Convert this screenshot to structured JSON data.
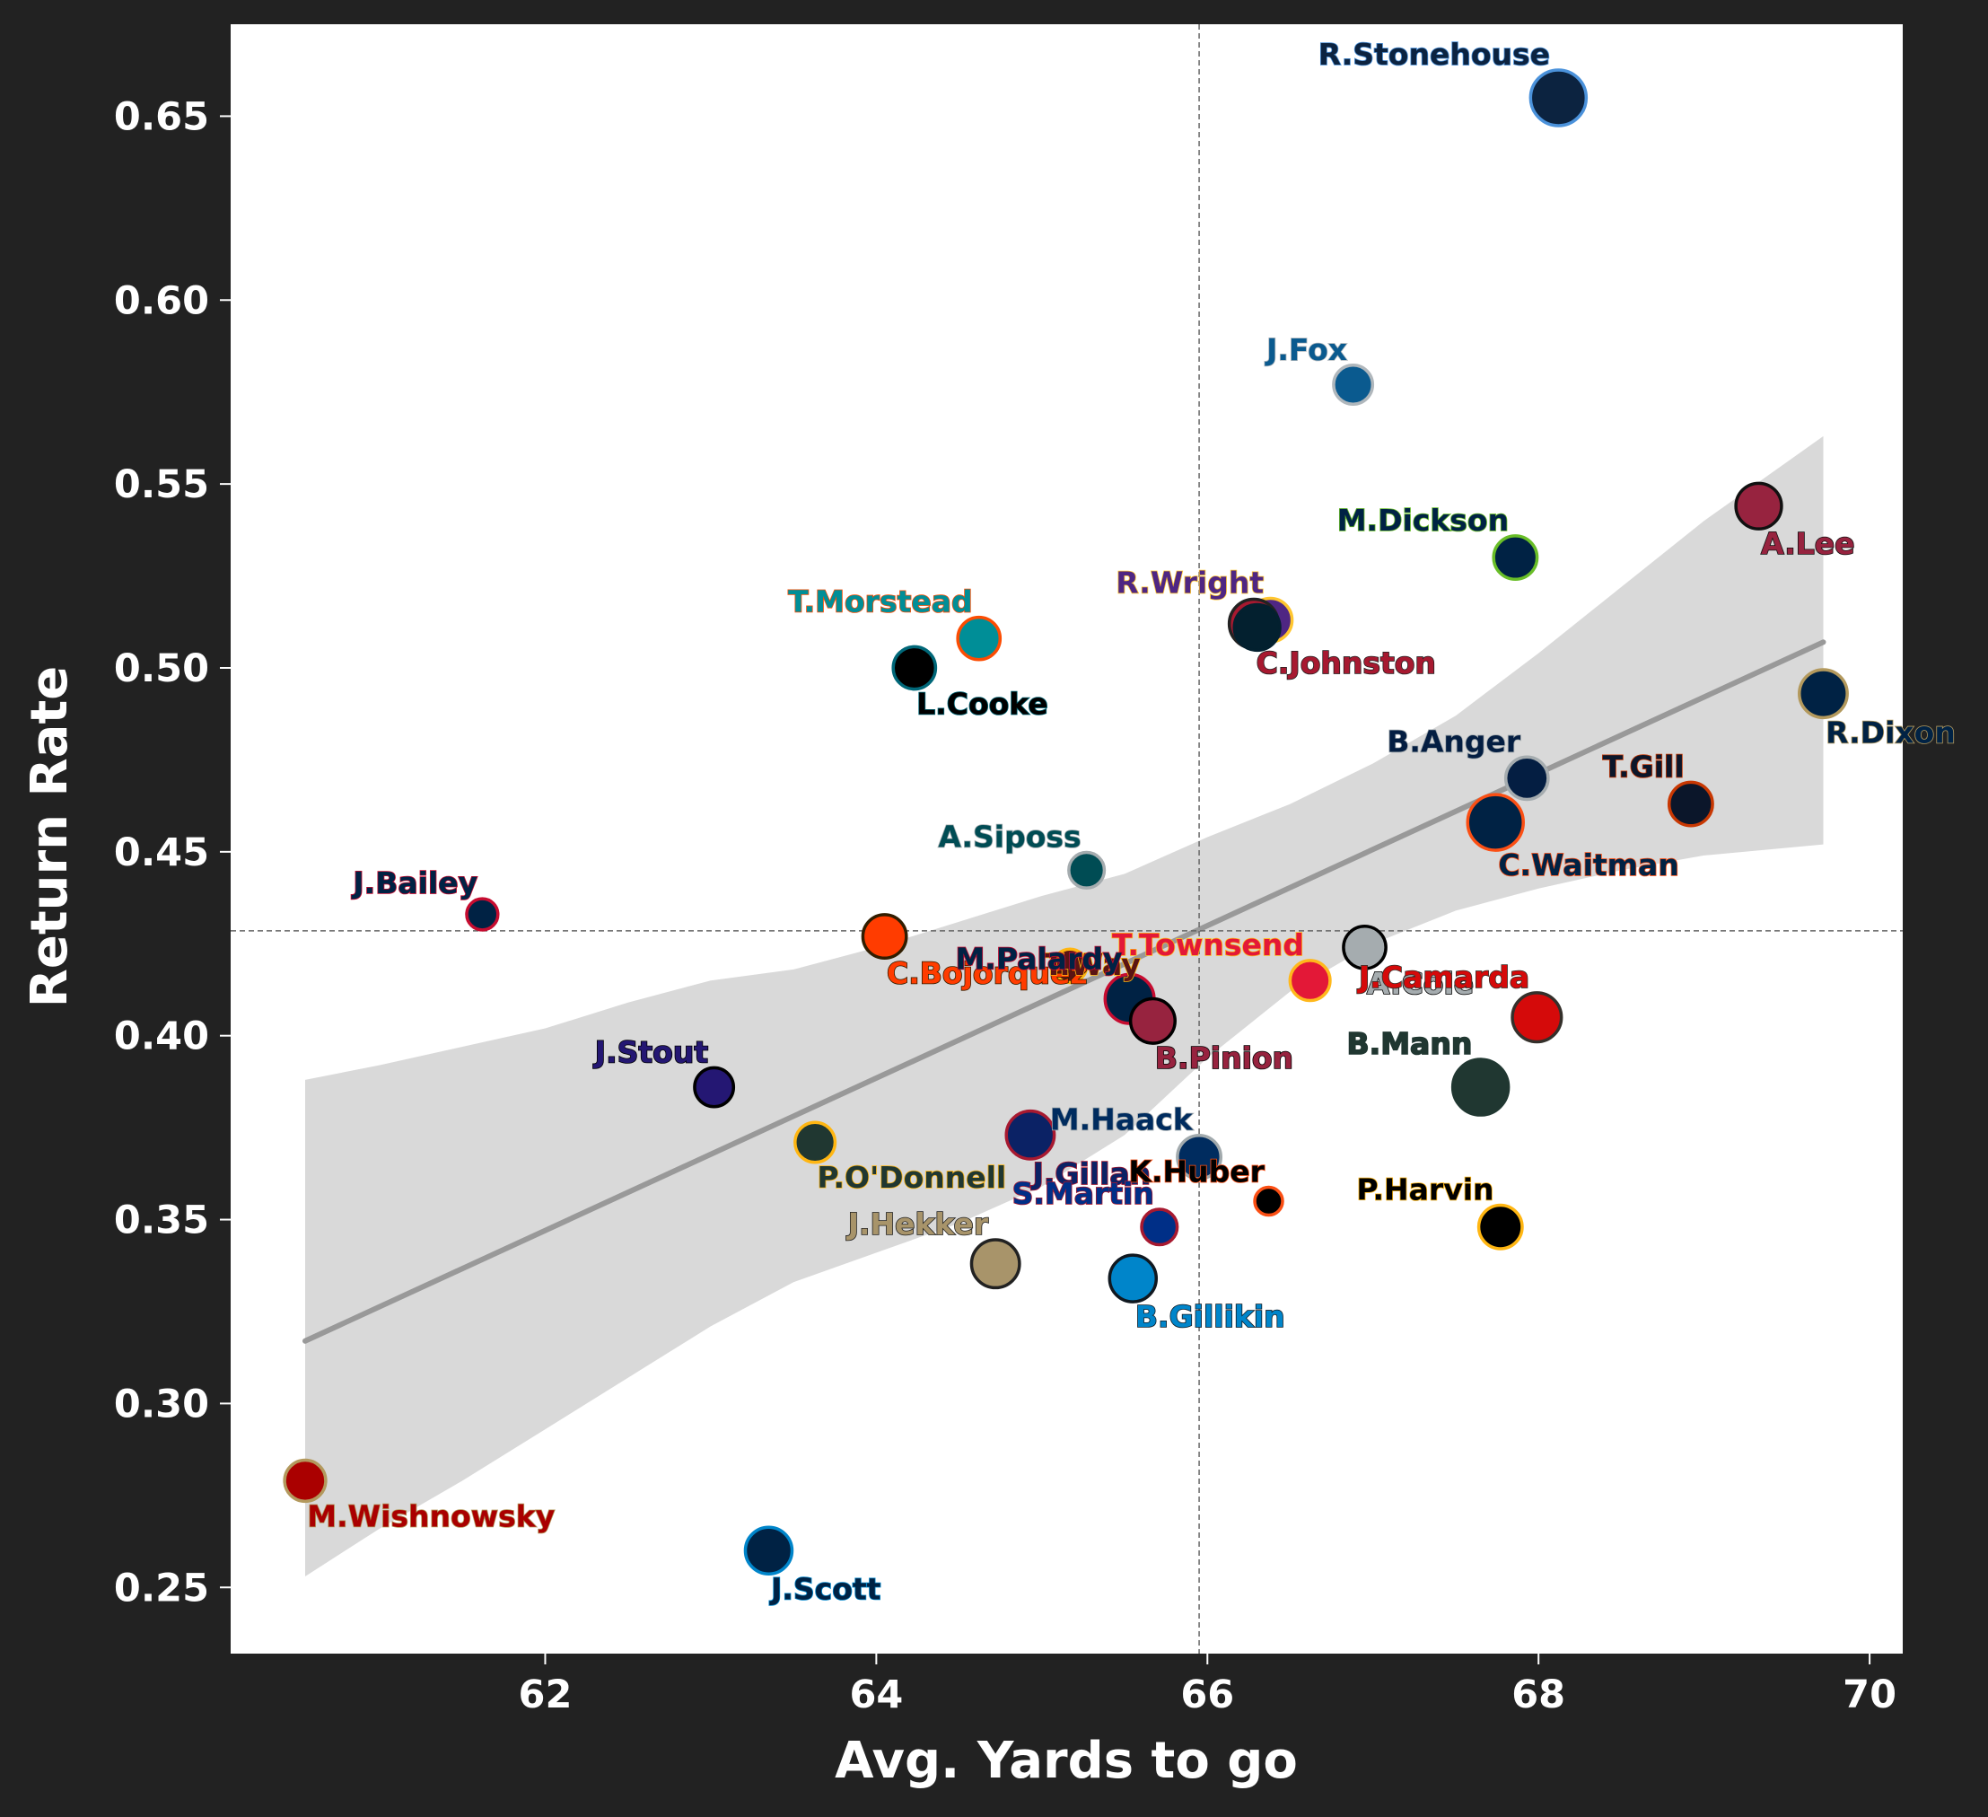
{
  "chart_data": {
    "type": "scatter",
    "xlabel": "Avg. Yards to go",
    "ylabel": "Return Rate",
    "xlim": [
      60.1,
      70.2
    ],
    "ylim": [
      0.232,
      0.675
    ],
    "xticks": [
      62,
      64,
      66,
      68,
      70
    ],
    "xtick_labels": [
      "62",
      "64",
      "66",
      "68",
      "70"
    ],
    "yticks": [
      0.25,
      0.3,
      0.35,
      0.4,
      0.45,
      0.5,
      0.55,
      0.6,
      0.65
    ],
    "ytick_labels": [
      "0.25",
      "0.30",
      "0.35",
      "0.40",
      "0.45",
      "0.50",
      "0.55",
      "0.60",
      "0.65"
    ],
    "mean_x": 65.95,
    "mean_y": 0.4285,
    "trend": {
      "x": [
        60.55,
        69.72
      ],
      "y": [
        0.317,
        0.507
      ]
    },
    "band": {
      "x": [
        60.55,
        61.0,
        61.5,
        62.0,
        62.5,
        63.0,
        63.5,
        64.0,
        64.5,
        65.0,
        65.5,
        66.0,
        66.5,
        67.0,
        67.5,
        68.0,
        68.5,
        69.0,
        69.72
      ],
      "upper": [
        0.388,
        0.392,
        0.397,
        0.402,
        0.409,
        0.415,
        0.418,
        0.424,
        0.431,
        0.438,
        0.444,
        0.454,
        0.463,
        0.474,
        0.487,
        0.504,
        0.522,
        0.54,
        0.563
      ],
      "lower": [
        0.253,
        0.266,
        0.279,
        0.293,
        0.307,
        0.321,
        0.333,
        0.341,
        0.349,
        0.359,
        0.373,
        0.394,
        0.412,
        0.425,
        0.434,
        0.44,
        0.445,
        0.449,
        0.452
      ]
    },
    "points": [
      {
        "label": "R.Stonehouse",
        "x": 68.12,
        "y": 0.655,
        "fill": "#0C2340",
        "stroke": "#4B92DB",
        "r": 1.0,
        "lpos": "above"
      },
      {
        "label": "J.Fox",
        "x": 66.88,
        "y": 0.577,
        "fill": "#0A5A8F",
        "stroke": "#B0B7BC",
        "r": 0.7,
        "lpos": "above"
      },
      {
        "label": "M.Dickson",
        "x": 67.86,
        "y": 0.53,
        "fill": "#002244",
        "stroke": "#69BE28",
        "r": 0.78,
        "lpos": "above"
      },
      {
        "label": "A.Lee",
        "x": 69.33,
        "y": 0.544,
        "fill": "#97233F",
        "stroke": "#111111",
        "r": 0.82,
        "lpos": "below"
      },
      {
        "label": "R.Wright",
        "x": 66.38,
        "y": 0.513,
        "fill": "#4F2683",
        "stroke": "#FFC62F",
        "r": 0.78,
        "lpos": "above"
      },
      {
        "label": "C.Johnston",
        "x": 66.28,
        "y": 0.512,
        "fill": "#A71930",
        "stroke": "#222222",
        "r": 0.88,
        "lpos": "below"
      },
      {
        "label": "",
        "x": 66.3,
        "y": 0.511,
        "fill": "#03202F",
        "stroke": "#03202F",
        "r": 0.82,
        "lpos": "none"
      },
      {
        "label": "T.Morstead",
        "x": 64.62,
        "y": 0.508,
        "fill": "#008E97",
        "stroke": "#FC4C02",
        "r": 0.76,
        "lpos": "above"
      },
      {
        "label": "L.Cooke",
        "x": 64.23,
        "y": 0.5,
        "fill": "#000000",
        "stroke": "#006778",
        "r": 0.76,
        "lpos": "below"
      },
      {
        "label": "R.Dixon",
        "x": 69.72,
        "y": 0.493,
        "fill": "#002244",
        "stroke": "#B3995D",
        "r": 0.86,
        "lpos": "below"
      },
      {
        "label": "B.Anger",
        "x": 67.93,
        "y": 0.47,
        "fill": "#041E42",
        "stroke": "#A5ACAF",
        "r": 0.76,
        "lpos": "above"
      },
      {
        "label": "T.Gill",
        "x": 68.92,
        "y": 0.463,
        "fill": "#0B162A",
        "stroke": "#C83803",
        "r": 0.78,
        "lpos": "above"
      },
      {
        "label": "C.Waitman",
        "x": 67.74,
        "y": 0.458,
        "fill": "#002244",
        "stroke": "#FB4F14",
        "r": 1.0,
        "lpos": "below"
      },
      {
        "label": "A.Siposs",
        "x": 65.27,
        "y": 0.445,
        "fill": "#004C54",
        "stroke": "#A5ACAF",
        "r": 0.64,
        "lpos": "above"
      },
      {
        "label": "J.Bailey",
        "x": 61.62,
        "y": 0.433,
        "fill": "#002244",
        "stroke": "#C60C30",
        "r": 0.56,
        "lpos": "above"
      },
      {
        "label": "C.Bojorquez",
        "x": 64.05,
        "y": 0.427,
        "fill": "#FF3C00",
        "stroke": "#311D00",
        "r": 0.78,
        "lpos": "below"
      },
      {
        "label": "A.Cole",
        "x": 66.95,
        "y": 0.424,
        "fill": "#A5ACAF",
        "stroke": "#000000",
        "r": 0.76,
        "lpos": "below"
      },
      {
        "label": "T.Way",
        "x": 65.17,
        "y": 0.419,
        "fill": "#5A1414",
        "stroke": "#FFB612",
        "r": 0.6,
        "lpos": "side"
      },
      {
        "label": "T.Townsend",
        "x": 66.62,
        "y": 0.415,
        "fill": "#E31837",
        "stroke": "#FFB81C",
        "r": 0.72,
        "lpos": "above"
      },
      {
        "label": "M.Palardy",
        "x": 65.53,
        "y": 0.41,
        "fill": "#002244",
        "stroke": "#C60C30",
        "r": 0.88,
        "lpos": "above"
      },
      {
        "label": "J.Camarda",
        "x": 67.99,
        "y": 0.405,
        "fill": "#D50A0A",
        "stroke": "#34302B",
        "r": 0.88,
        "lpos": "above"
      },
      {
        "label": "B.Pinion",
        "x": 65.67,
        "y": 0.404,
        "fill": "#97233F",
        "stroke": "#000000",
        "r": 0.8,
        "lpos": "below"
      },
      {
        "label": "B.Mann",
        "x": 67.65,
        "y": 0.386,
        "fill": "#203731",
        "stroke": "#203731",
        "r": 1.0,
        "lpos": "above"
      },
      {
        "label": "J.Stout",
        "x": 63.02,
        "y": 0.386,
        "fill": "#241773",
        "stroke": "#000000",
        "r": 0.7,
        "lpos": "above"
      },
      {
        "label": "J.Gillan",
        "x": 64.93,
        "y": 0.373,
        "fill": "#0B2265",
        "stroke": "#A71930",
        "r": 0.86,
        "lpos": "below"
      },
      {
        "label": "P.O'Donnell",
        "x": 63.63,
        "y": 0.371,
        "fill": "#203731",
        "stroke": "#FFB612",
        "r": 0.72,
        "lpos": "below"
      },
      {
        "label": "M.Haack",
        "x": 65.95,
        "y": 0.367,
        "fill": "#002C5F",
        "stroke": "#A2AAAD",
        "r": 0.78,
        "lpos": "above"
      },
      {
        "label": "K.Huber",
        "x": 66.37,
        "y": 0.355,
        "fill": "#000000",
        "stroke": "#FB4F14",
        "r": 0.5,
        "lpos": "above"
      },
      {
        "label": "S.Martin",
        "x": 65.71,
        "y": 0.348,
        "fill": "#002F87",
        "stroke": "#A71930",
        "r": 0.64,
        "lpos": "above"
      },
      {
        "label": "P.Harvin",
        "x": 67.77,
        "y": 0.348,
        "fill": "#000000",
        "stroke": "#FFB612",
        "r": 0.78,
        "lpos": "above"
      },
      {
        "label": "J.Hekker",
        "x": 64.72,
        "y": 0.338,
        "fill": "#A8946A",
        "stroke": "#222222",
        "r": 0.86,
        "lpos": "above"
      },
      {
        "label": "B.Gillikin",
        "x": 65.55,
        "y": 0.334,
        "fill": "#0085CA",
        "stroke": "#101820",
        "r": 0.84,
        "lpos": "below"
      },
      {
        "label": "M.Wishnowsky",
        "x": 60.55,
        "y": 0.279,
        "fill": "#AA0000",
        "stroke": "#B3995D",
        "r": 0.74,
        "lpos": "below"
      },
      {
        "label": "J.Scott",
        "x": 63.35,
        "y": 0.26,
        "fill": "#002244",
        "stroke": "#0085CA",
        "r": 0.84,
        "lpos": "below"
      }
    ]
  }
}
